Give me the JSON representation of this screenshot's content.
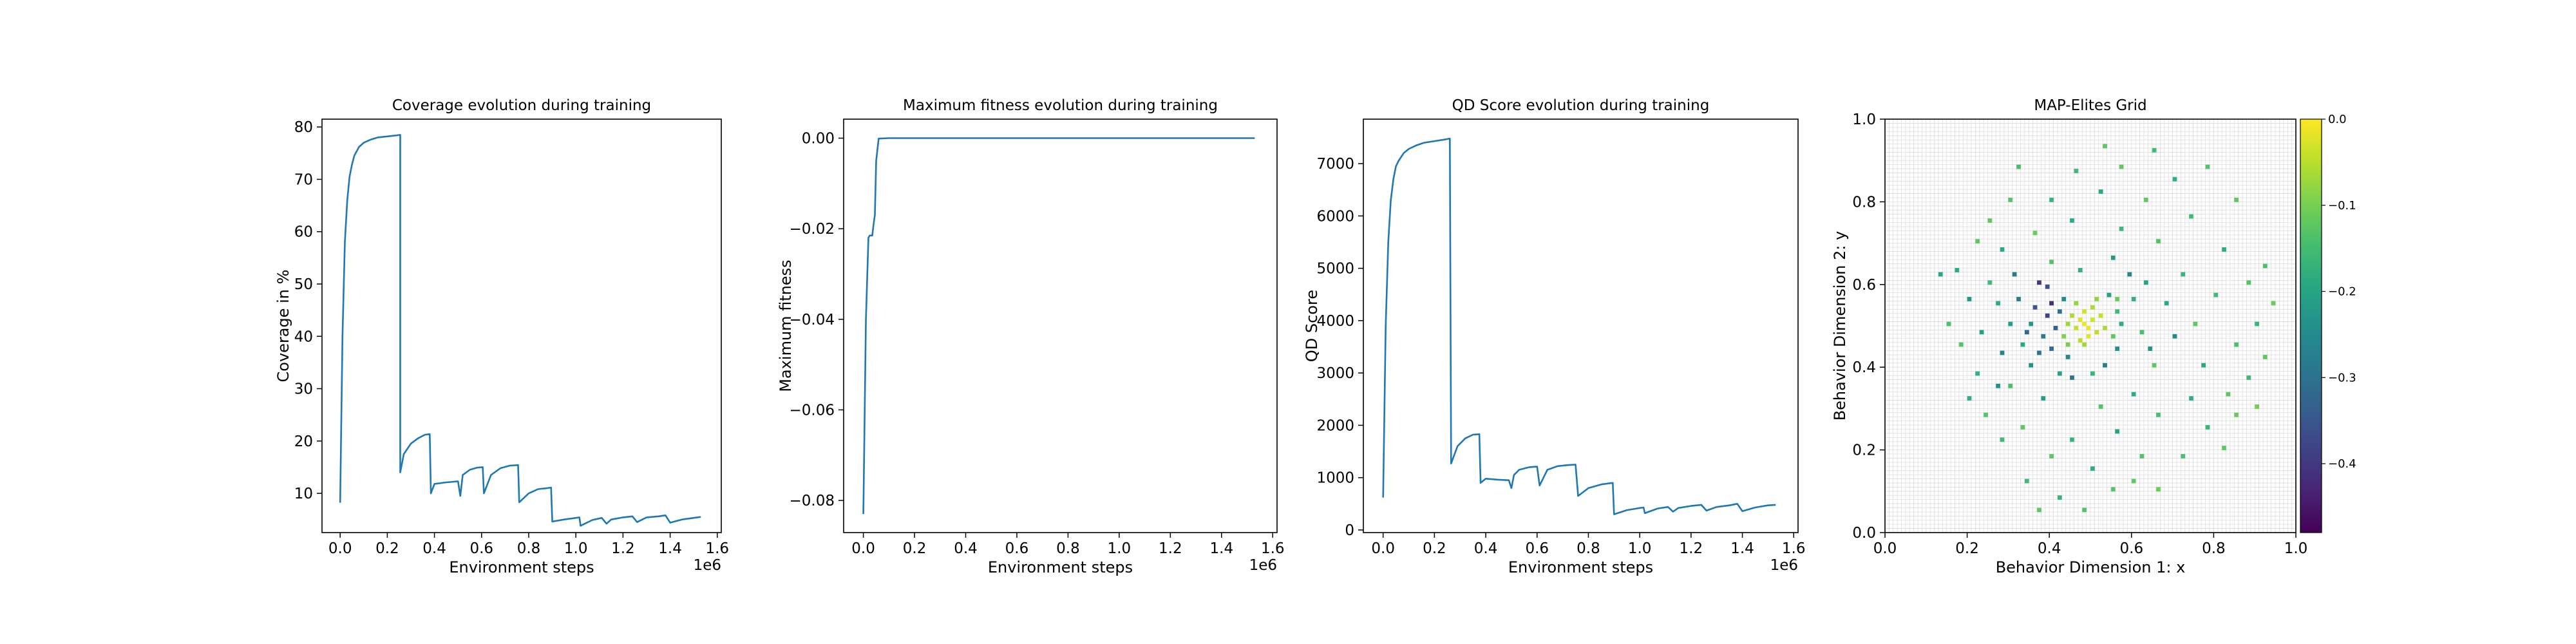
{
  "chart_data": [
    {
      "type": "line",
      "title": "Coverage evolution during training",
      "xlabel": "Environment steps",
      "ylabel": "Coverage in %",
      "x_offset_label": "1e6",
      "xlim": [
        -0.077,
        1.617
      ],
      "ylim": [
        2.5,
        81.5
      ],
      "xticks": [
        0.0,
        0.2,
        0.4,
        0.6,
        0.8,
        1.0,
        1.2,
        1.4,
        1.6
      ],
      "xtick_labels": [
        "0.0",
        "0.2",
        "0.4",
        "0.6",
        "0.8",
        "1.0",
        "1.2",
        "1.4",
        "1.6"
      ],
      "yticks": [
        10,
        20,
        30,
        40,
        50,
        60,
        70,
        80
      ],
      "ytick_labels": [
        "10",
        "20",
        "30",
        "40",
        "50",
        "60",
        "70",
        "80"
      ],
      "color": "#1f77b4",
      "series": [
        {
          "x": [
            0.0,
            0.01,
            0.02,
            0.03,
            0.04,
            0.05,
            0.06,
            0.08,
            0.1,
            0.13,
            0.16,
            0.2,
            0.24,
            0.255,
            0.255,
            0.27,
            0.3,
            0.33,
            0.36,
            0.38,
            0.385,
            0.4,
            0.45,
            0.5,
            0.51,
            0.52,
            0.55,
            0.58,
            0.605,
            0.61,
            0.64,
            0.68,
            0.72,
            0.755,
            0.76,
            0.8,
            0.84,
            0.88,
            0.895,
            0.9,
            0.95,
            1.0,
            1.015,
            1.02,
            1.07,
            1.11,
            1.13,
            1.15,
            1.2,
            1.24,
            1.26,
            1.3,
            1.35,
            1.38,
            1.4,
            1.45,
            1.5,
            1.53
          ],
          "y": [
            8.2,
            40,
            58,
            66,
            70.5,
            72.8,
            74.5,
            76.2,
            77.0,
            77.6,
            78.0,
            78.2,
            78.4,
            78.5,
            14.0,
            17.5,
            19.5,
            20.5,
            21.2,
            21.3,
            10.0,
            11.8,
            12.1,
            12.3,
            9.5,
            13.5,
            14.5,
            14.9,
            15.0,
            10.0,
            13.5,
            14.8,
            15.3,
            15.4,
            8.3,
            10.0,
            10.8,
            11.0,
            11.1,
            4.6,
            5.0,
            5.3,
            5.4,
            3.8,
            4.9,
            5.3,
            4.2,
            5.0,
            5.4,
            5.6,
            4.5,
            5.4,
            5.6,
            5.8,
            4.4,
            5.0,
            5.3,
            5.5
          ]
        }
      ]
    },
    {
      "type": "line",
      "title": "Maximum fitness evolution during training",
      "xlabel": "Environment steps",
      "ylabel": "Maximum fitness",
      "x_offset_label": "1e6",
      "xlim": [
        -0.077,
        1.617
      ],
      "ylim": [
        -0.0871,
        0.0042
      ],
      "xticks": [
        0.0,
        0.2,
        0.4,
        0.6,
        0.8,
        1.0,
        1.2,
        1.4,
        1.6
      ],
      "xtick_labels": [
        "0.0",
        "0.2",
        "0.4",
        "0.6",
        "0.8",
        "1.0",
        "1.2",
        "1.4",
        "1.6"
      ],
      "yticks": [
        0.0,
        -0.02,
        -0.04,
        -0.06,
        -0.08
      ],
      "ytick_labels": [
        "0.00",
        "−0.02",
        "−0.04",
        "−0.06",
        "−0.08"
      ],
      "color": "#1f77b4",
      "series": [
        {
          "x": [
            0.0,
            0.01,
            0.02,
            0.025,
            0.035,
            0.04,
            0.045,
            0.05,
            0.06,
            0.1,
            0.5,
            1.0,
            1.53
          ],
          "y": [
            -0.083,
            -0.04,
            -0.022,
            -0.0215,
            -0.0215,
            -0.019,
            -0.017,
            -0.005,
            -0.0001,
            0.0,
            0.0,
            0.0,
            0.0
          ]
        }
      ]
    },
    {
      "type": "line",
      "title": "QD Score evolution during training",
      "xlabel": "Environment steps",
      "ylabel": "QD Score",
      "x_offset_label": "1e6",
      "xlim": [
        -0.077,
        1.617
      ],
      "ylim": [
        -50,
        7850
      ],
      "xticks": [
        0.0,
        0.2,
        0.4,
        0.6,
        0.8,
        1.0,
        1.2,
        1.4,
        1.6
      ],
      "xtick_labels": [
        "0.0",
        "0.2",
        "0.4",
        "0.6",
        "0.8",
        "1.0",
        "1.2",
        "1.4",
        "1.6"
      ],
      "yticks": [
        0,
        1000,
        2000,
        3000,
        4000,
        5000,
        6000,
        7000
      ],
      "ytick_labels": [
        "0",
        "1000",
        "2000",
        "3000",
        "4000",
        "5000",
        "6000",
        "7000"
      ],
      "color": "#1f77b4",
      "series": [
        {
          "x": [
            0.0,
            0.01,
            0.02,
            0.03,
            0.04,
            0.05,
            0.06,
            0.08,
            0.1,
            0.13,
            0.16,
            0.2,
            0.24,
            0.26,
            0.265,
            0.29,
            0.32,
            0.35,
            0.375,
            0.38,
            0.4,
            0.45,
            0.49,
            0.5,
            0.51,
            0.53,
            0.57,
            0.6,
            0.61,
            0.64,
            0.68,
            0.72,
            0.75,
            0.76,
            0.8,
            0.85,
            0.895,
            0.9,
            0.95,
            1.0,
            1.015,
            1.02,
            1.07,
            1.11,
            1.13,
            1.15,
            1.2,
            1.24,
            1.26,
            1.3,
            1.35,
            1.38,
            1.4,
            1.45,
            1.5,
            1.53
          ],
          "y": [
            620,
            3900,
            5500,
            6300,
            6700,
            6950,
            7050,
            7200,
            7280,
            7350,
            7400,
            7430,
            7460,
            7480,
            1270,
            1600,
            1750,
            1820,
            1830,
            900,
            980,
            960,
            950,
            800,
            1050,
            1150,
            1200,
            1210,
            850,
            1150,
            1220,
            1240,
            1250,
            650,
            800,
            870,
            900,
            300,
            380,
            420,
            430,
            320,
            410,
            440,
            350,
            420,
            460,
            480,
            370,
            440,
            470,
            500,
            360,
            430,
            470,
            480
          ]
        }
      ]
    },
    {
      "type": "heatmap",
      "title": "MAP-Elites Grid",
      "xlabel": "Behavior Dimension 1: x",
      "ylabel": "Behavior Dimension 2: y",
      "xlim": [
        0.0,
        1.0
      ],
      "ylim": [
        0.0,
        1.0
      ],
      "xticks": [
        0.0,
        0.2,
        0.4,
        0.6,
        0.8,
        1.0
      ],
      "xtick_labels": [
        "0.0",
        "0.2",
        "0.4",
        "0.6",
        "0.8",
        "1.0"
      ],
      "yticks": [
        0.0,
        0.2,
        0.4,
        0.6,
        0.8,
        1.0
      ],
      "ytick_labels": [
        "0.0",
        "0.2",
        "0.4",
        "0.6",
        "0.8",
        "1.0"
      ],
      "grid": true,
      "grid_cells_per_axis": 100,
      "colormap": "viridis",
      "colorbar_range": [
        -0.48,
        0.0
      ],
      "colorbar_ticks": [
        0.0,
        -0.1,
        -0.2,
        -0.3,
        -0.4
      ],
      "colorbar_tick_labels": [
        "0.0",
        "−0.1",
        "−0.2",
        "−0.3",
        "−0.4"
      ],
      "filled_cells": [
        [
          0.48,
          0.5,
          -0.01
        ],
        [
          0.47,
          0.51,
          -0.02
        ],
        [
          0.49,
          0.49,
          -0.01
        ],
        [
          0.5,
          0.51,
          -0.03
        ],
        [
          0.46,
          0.49,
          -0.04
        ],
        [
          0.48,
          0.53,
          -0.03
        ],
        [
          0.51,
          0.48,
          -0.05
        ],
        [
          0.45,
          0.52,
          -0.06
        ],
        [
          0.49,
          0.47,
          -0.02
        ],
        [
          0.47,
          0.46,
          -0.05
        ],
        [
          0.52,
          0.52,
          -0.04
        ],
        [
          0.44,
          0.5,
          -0.07
        ],
        [
          0.5,
          0.54,
          -0.06
        ],
        [
          0.46,
          0.55,
          -0.08
        ],
        [
          0.53,
          0.49,
          -0.06
        ],
        [
          0.48,
          0.45,
          -0.07
        ],
        [
          0.43,
          0.47,
          -0.09
        ],
        [
          0.51,
          0.56,
          -0.08
        ],
        [
          0.42,
          0.53,
          -0.3
        ],
        [
          0.4,
          0.55,
          -0.42
        ],
        [
          0.39,
          0.52,
          -0.38
        ],
        [
          0.41,
          0.49,
          -0.33
        ],
        [
          0.38,
          0.47,
          -0.28
        ],
        [
          0.36,
          0.54,
          -0.35
        ],
        [
          0.43,
          0.57,
          -0.25
        ],
        [
          0.37,
          0.6,
          -0.4
        ],
        [
          0.35,
          0.5,
          -0.22
        ],
        [
          0.4,
          0.44,
          -0.31
        ],
        [
          0.44,
          0.42,
          -0.26
        ],
        [
          0.55,
          0.47,
          -0.12
        ],
        [
          0.56,
          0.53,
          -0.15
        ],
        [
          0.58,
          0.5,
          -0.18
        ],
        [
          0.54,
          0.58,
          -0.2
        ],
        [
          0.57,
          0.44,
          -0.24
        ],
        [
          0.6,
          0.56,
          -0.17
        ],
        [
          0.33,
          0.45,
          -0.19
        ],
        [
          0.32,
          0.57,
          -0.27
        ],
        [
          0.3,
          0.5,
          -0.21
        ],
        [
          0.35,
          0.4,
          -0.23
        ],
        [
          0.45,
          0.37,
          -0.29
        ],
        [
          0.5,
          0.38,
          -0.16
        ],
        [
          0.62,
          0.48,
          -0.14
        ],
        [
          0.63,
          0.6,
          -0.2
        ],
        [
          0.27,
          0.55,
          -0.18
        ],
        [
          0.28,
          0.43,
          -0.26
        ],
        [
          0.4,
          0.65,
          -0.13
        ],
        [
          0.47,
          0.63,
          -0.17
        ],
        [
          0.55,
          0.66,
          -0.22
        ],
        [
          0.65,
          0.4,
          -0.12
        ],
        [
          0.68,
          0.55,
          -0.19
        ],
        [
          0.7,
          0.47,
          -0.25
        ],
        [
          0.25,
          0.6,
          -0.15
        ],
        [
          0.23,
          0.48,
          -0.2
        ],
        [
          0.3,
          0.35,
          -0.14
        ],
        [
          0.38,
          0.32,
          -0.21
        ],
        [
          0.52,
          0.3,
          -0.13
        ],
        [
          0.6,
          0.33,
          -0.18
        ],
        [
          0.72,
          0.62,
          -0.16
        ],
        [
          0.75,
          0.5,
          -0.12
        ],
        [
          0.22,
          0.38,
          -0.17
        ],
        [
          0.2,
          0.57,
          -0.22
        ],
        [
          0.28,
          0.68,
          -0.19
        ],
        [
          0.36,
          0.72,
          -0.11
        ],
        [
          0.45,
          0.75,
          -0.18
        ],
        [
          0.58,
          0.73,
          -0.15
        ],
        [
          0.66,
          0.7,
          -0.13
        ],
        [
          0.77,
          0.4,
          -0.19
        ],
        [
          0.8,
          0.58,
          -0.15
        ],
        [
          0.33,
          0.25,
          -0.12
        ],
        [
          0.45,
          0.22,
          -0.16
        ],
        [
          0.56,
          0.24,
          -0.2
        ],
        [
          0.66,
          0.28,
          -0.14
        ],
        [
          0.74,
          0.32,
          -0.17
        ],
        [
          0.18,
          0.45,
          -0.13
        ],
        [
          0.17,
          0.63,
          -0.18
        ],
        [
          0.25,
          0.75,
          -0.12
        ],
        [
          0.4,
          0.8,
          -0.16
        ],
        [
          0.52,
          0.82,
          -0.19
        ],
        [
          0.63,
          0.8,
          -0.12
        ],
        [
          0.74,
          0.76,
          -0.15
        ],
        [
          0.82,
          0.68,
          -0.18
        ],
        [
          0.85,
          0.45,
          -0.14
        ],
        [
          0.83,
          0.33,
          -0.12
        ],
        [
          0.78,
          0.25,
          -0.16
        ],
        [
          0.62,
          0.18,
          -0.13
        ],
        [
          0.5,
          0.15,
          -0.18
        ],
        [
          0.4,
          0.18,
          -0.12
        ],
        [
          0.28,
          0.22,
          -0.15
        ],
        [
          0.13,
          0.62,
          -0.19
        ],
        [
          0.15,
          0.5,
          -0.14
        ],
        [
          0.2,
          0.32,
          -0.17
        ],
        [
          0.3,
          0.8,
          -0.13
        ],
        [
          0.46,
          0.87,
          -0.15
        ],
        [
          0.58,
          0.88,
          -0.12
        ],
        [
          0.7,
          0.85,
          -0.17
        ],
        [
          0.88,
          0.6,
          -0.13
        ],
        [
          0.9,
          0.5,
          -0.16
        ],
        [
          0.92,
          0.42,
          -0.12
        ],
        [
          0.88,
          0.37,
          -0.15
        ],
        [
          0.85,
          0.28,
          -0.11
        ],
        [
          0.72,
          0.18,
          -0.14
        ],
        [
          0.55,
          0.1,
          -0.13
        ],
        [
          0.42,
          0.08,
          -0.16
        ],
        [
          0.6,
          0.12,
          -0.12
        ],
        [
          0.34,
          0.12,
          -0.15
        ],
        [
          0.24,
          0.28,
          -0.13
        ],
        [
          0.94,
          0.55,
          -0.11
        ],
        [
          0.92,
          0.64,
          -0.14
        ],
        [
          0.85,
          0.8,
          -0.12
        ],
        [
          0.78,
          0.88,
          -0.13
        ],
        [
          0.65,
          0.92,
          -0.15
        ],
        [
          0.53,
          0.93,
          -0.12
        ],
        [
          0.32,
          0.88,
          -0.14
        ],
        [
          0.22,
          0.7,
          -0.12
        ],
        [
          0.9,
          0.3,
          -0.1
        ],
        [
          0.82,
          0.2,
          -0.12
        ],
        [
          0.66,
          0.1,
          -0.11
        ],
        [
          0.48,
          0.05,
          -0.13
        ],
        [
          0.37,
          0.05,
          -0.12
        ],
        [
          0.27,
          0.35,
          -0.24
        ],
        [
          0.31,
          0.62,
          -0.28
        ],
        [
          0.42,
          0.38,
          -0.2
        ],
        [
          0.59,
          0.62,
          -0.26
        ],
        [
          0.64,
          0.44,
          -0.23
        ],
        [
          0.53,
          0.4,
          -0.27
        ],
        [
          0.39,
          0.59,
          -0.36
        ],
        [
          0.34,
          0.48,
          -0.32
        ],
        [
          0.37,
          0.43,
          -0.29
        ],
        [
          0.57,
          0.56,
          -0.11
        ],
        [
          0.44,
          0.45,
          -0.1
        ]
      ]
    }
  ]
}
